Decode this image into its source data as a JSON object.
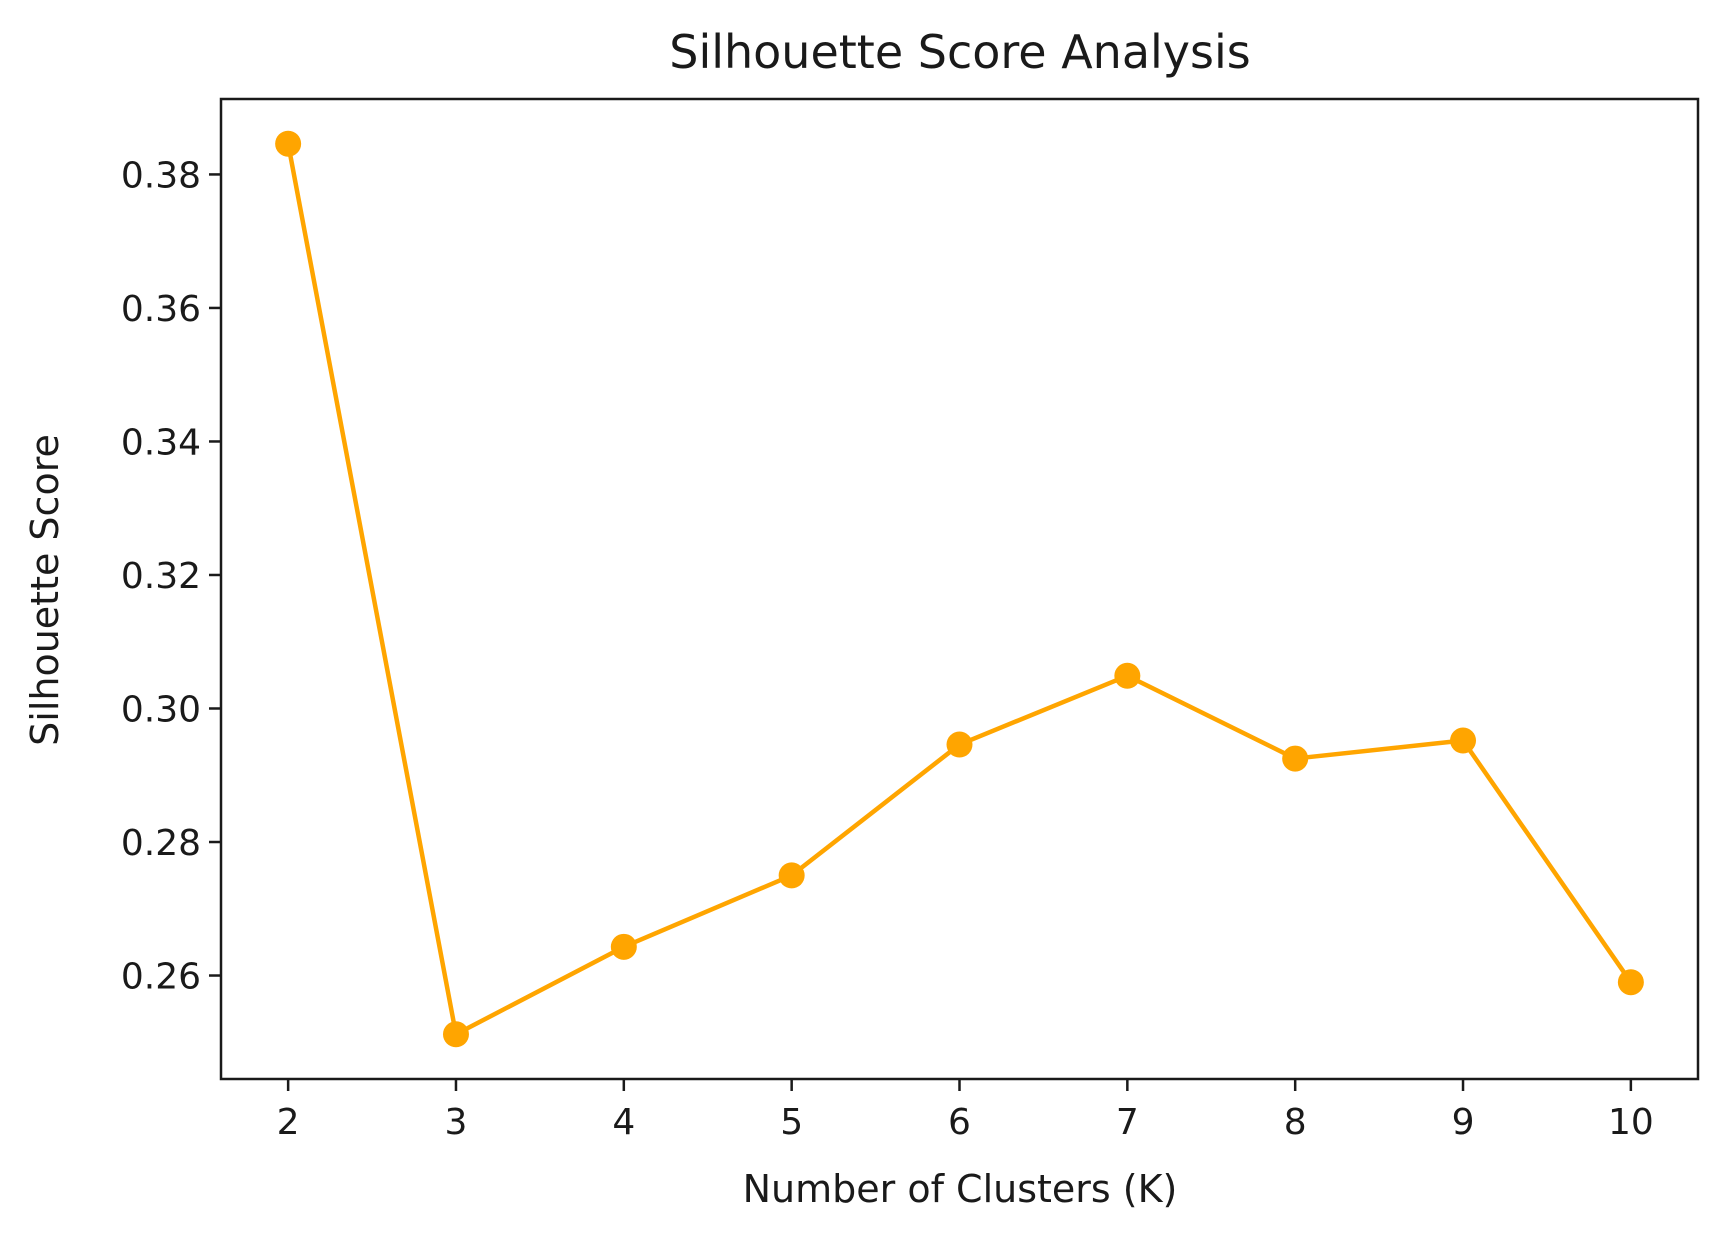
{
  "chart_data": {
    "type": "line",
    "title": "Silhouette Score Analysis",
    "xlabel": "Number of Clusters (K)",
    "ylabel": "Silhouette Score",
    "x": [
      2,
      3,
      4,
      5,
      6,
      7,
      8,
      9,
      10
    ],
    "series": [
      {
        "values": [
          0.3846,
          0.2512,
          0.2643,
          0.275,
          0.2946,
          0.3049,
          0.2925,
          0.2952,
          0.259
        ],
        "color": "#FFA500",
        "marker": "circle"
      }
    ],
    "xticks": [
      "2",
      "3",
      "4",
      "5",
      "6",
      "7",
      "8",
      "9",
      "10"
    ],
    "yticks": [
      "0.26",
      "0.28",
      "0.30",
      "0.32",
      "0.34",
      "0.36",
      "0.38"
    ],
    "ytick_values": [
      0.26,
      0.28,
      0.3,
      0.32,
      0.34,
      0.36,
      0.38
    ],
    "xlim": [
      1.6,
      10.4
    ],
    "ylim": [
      0.2445,
      0.3913
    ],
    "grid": false,
    "legend": "none"
  }
}
